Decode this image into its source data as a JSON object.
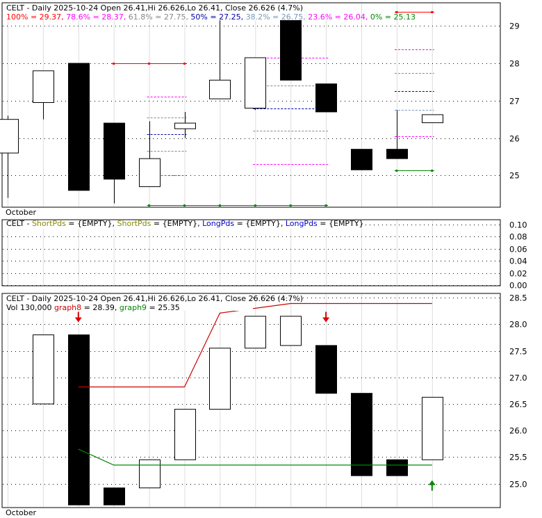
{
  "chart_data": [
    {
      "type": "candlestick",
      "panel": "price-fib",
      "header": {
        "symbol": "CELT",
        "text": " - Daily 2025-10-24 Open 26.41,Hi 26.626,Lo 26.41, Close 26.626 (4.7%)"
      },
      "fib_legend": [
        {
          "text": "100% = 29.37,",
          "color": "#ff0000"
        },
        {
          "text": " 78.6% = 28.37,",
          "color": "#ff00ff"
        },
        {
          "text": " 61.8% = 27.75,",
          "color": "#888888"
        },
        {
          "text": " 50% = 27.25,",
          "color": "#0000aa"
        },
        {
          "text": " 38.2% = 26.75,",
          "color": "#7799bb"
        },
        {
          "text": " 23.6% = 26.04,",
          "color": "#ff00ff"
        },
        {
          "text": " 0% = 25.13",
          "color": "#008800"
        }
      ],
      "ylim": [
        24.15,
        29.62
      ],
      "y_ticks": [
        25,
        26,
        27,
        28,
        29
      ],
      "x_label": "October",
      "candles": [
        {
          "x": 0,
          "o": 25.6,
          "h": 26.6,
          "l": 24.4,
          "c": 26.5
        },
        {
          "x": 1,
          "o": 26.95,
          "h": 27.8,
          "l": 26.5,
          "c": 27.8
        },
        {
          "x": 2,
          "o": 28.0,
          "h": 28.0,
          "l": 24.6,
          "c": 24.6
        },
        {
          "x": 3,
          "o": 26.4,
          "h": 26.4,
          "l": 24.25,
          "c": 24.9
        },
        {
          "x": 4,
          "o": 24.7,
          "h": 26.45,
          "l": 24.7,
          "c": 25.45
        },
        {
          "x": 5,
          "o": 26.25,
          "h": 26.7,
          "l": 26.0,
          "c": 26.4
        },
        {
          "x": 6,
          "o": 27.05,
          "h": 29.3,
          "l": 27.05,
          "c": 27.55
        },
        {
          "x": 7,
          "o": 26.8,
          "h": 28.15,
          "l": 26.75,
          "c": 28.15
        },
        {
          "x": 8,
          "o": 29.25,
          "h": 29.25,
          "l": 27.55,
          "c": 27.55
        },
        {
          "x": 9,
          "o": 27.45,
          "h": 27.45,
          "l": 26.7,
          "c": 26.7
        },
        {
          "x": 10,
          "o": 25.7,
          "h": 25.7,
          "l": 25.15,
          "c": 25.15
        },
        {
          "x": 11,
          "o": 25.7,
          "h": 26.75,
          "l": 25.45,
          "c": 25.45
        },
        {
          "x": 12,
          "o": 26.41,
          "h": 26.626,
          "l": 26.41,
          "c": 26.626
        }
      ],
      "level_lines": [
        {
          "y": 29.37,
          "x0": 11,
          "x1": 12,
          "color": "#ff0000",
          "style": "solid",
          "markers": true
        },
        {
          "y": 28.37,
          "x0": 11,
          "x1": 12,
          "color": "#ff00ff",
          "style": "dashed"
        },
        {
          "y": 27.75,
          "x0": 11,
          "x1": 12,
          "color": "#888888",
          "style": "dashed"
        },
        {
          "y": 27.25,
          "x0": 11,
          "x1": 12,
          "color": "#0000aa",
          "style": "dashed"
        },
        {
          "y": 26.75,
          "x0": 11,
          "x1": 12,
          "color": "#7799bb",
          "style": "dashed"
        },
        {
          "y": 26.04,
          "x0": 11,
          "x1": 12,
          "color": "#ff00ff",
          "style": "dashed"
        },
        {
          "y": 25.13,
          "x0": 11,
          "x1": 12,
          "color": "#008800",
          "style": "solid",
          "markers": true
        },
        {
          "y": 28.0,
          "x0": 3,
          "x1": 5,
          "color": "#ff0000",
          "style": "solid",
          "markers": true
        },
        {
          "y": 27.1,
          "x0": 4,
          "x1": 5,
          "color": "#ff00ff",
          "style": "dashed"
        },
        {
          "y": 26.55,
          "x0": 4,
          "x1": 5,
          "color": "#888888",
          "style": "dashed"
        },
        {
          "y": 26.1,
          "x0": 4,
          "x1": 5,
          "color": "#0000aa",
          "style": "dashed"
        },
        {
          "y": 25.65,
          "x0": 4,
          "x1": 5,
          "color": "#888888",
          "style": "dashed"
        },
        {
          "y": 25.0,
          "x0": 4,
          "x1": 5,
          "color": "#ff00ff",
          "style": "dashed"
        },
        {
          "y": 24.2,
          "x0": 4,
          "x1": 9,
          "color": "#008800",
          "style": "solid",
          "markers": true
        },
        {
          "y": 28.15,
          "x0": 7,
          "x1": 9,
          "color": "#ff00ff",
          "style": "dashed"
        },
        {
          "y": 27.4,
          "x0": 7,
          "x1": 9,
          "color": "#888888",
          "style": "dashed"
        },
        {
          "y": 26.8,
          "x0": 7,
          "x1": 9,
          "color": "#0000aa",
          "style": "dashed"
        },
        {
          "y": 26.2,
          "x0": 7,
          "x1": 9,
          "color": "#888888",
          "style": "dashed"
        },
        {
          "y": 25.3,
          "x0": 7,
          "x1": 9,
          "color": "#ff00ff",
          "style": "dashed"
        }
      ]
    },
    {
      "type": "line",
      "panel": "indicator",
      "header": [
        {
          "text": "CELT",
          "color": "#000000"
        },
        {
          "text": " - ",
          "color": "#000000"
        },
        {
          "text": "ShortPds",
          "color": "#888800"
        },
        {
          "text": " = {EMPTY}, ",
          "color": "#000000"
        },
        {
          "text": "ShortPds",
          "color": "#888800"
        },
        {
          "text": " = {EMPTY}, ",
          "color": "#000000"
        },
        {
          "text": "LongPds",
          "color": "#0000cc"
        },
        {
          "text": " = {EMPTY}, ",
          "color": "#000000"
        },
        {
          "text": "LongPds",
          "color": "#0000cc"
        },
        {
          "text": " = {EMPTY}",
          "color": "#000000"
        }
      ],
      "ylim": [
        0,
        0.1
      ],
      "y_ticks": [
        "0.10",
        "0.08",
        "0.06",
        "0.04",
        "0.02",
        "0.00"
      ],
      "series": []
    },
    {
      "type": "bar",
      "panel": "swing",
      "header": {
        "symbol": "CELT",
        "text": " - Daily 2025-10-24 Open 26.41,Hi 26.626,Lo 26.41, Close 26.626 (4.7%)"
      },
      "legend": [
        {
          "text": "Vol 130,000",
          "color": "#000000"
        },
        {
          "text": " graph8",
          "color": "#cc0000"
        },
        {
          "text": " = 28.39,",
          "color": "#000000"
        },
        {
          "text": " graph9",
          "color": "#008800"
        },
        {
          "text": " = 25.35",
          "color": "#000000"
        }
      ],
      "ylim": [
        24.55,
        28.58
      ],
      "y_ticks": [
        "28.5",
        "28.0",
        "27.5",
        "27.0",
        "26.5",
        "26.0",
        "25.5",
        "25.0"
      ],
      "x_label": "October",
      "boxes": [
        {
          "x": 1,
          "low": 26.5,
          "high": 27.8,
          "filled": false
        },
        {
          "x": 2,
          "low": 24.6,
          "high": 27.8,
          "filled": true
        },
        {
          "x": 3,
          "low": 24.6,
          "high": 24.92,
          "filled": true
        },
        {
          "x": 4,
          "low": 24.92,
          "high": 25.45,
          "filled": false
        },
        {
          "x": 5,
          "low": 25.45,
          "high": 26.4,
          "filled": false
        },
        {
          "x": 6,
          "low": 26.4,
          "high": 27.55,
          "filled": false
        },
        {
          "x": 7,
          "low": 27.55,
          "high": 28.15,
          "filled": false
        },
        {
          "x": 8,
          "low": 27.6,
          "high": 28.15,
          "filled": false
        },
        {
          "x": 9,
          "low": 26.7,
          "high": 27.6,
          "filled": true
        },
        {
          "x": 10,
          "low": 25.15,
          "high": 26.7,
          "filled": true
        },
        {
          "x": 11,
          "low": 25.15,
          "high": 25.45,
          "filled": true
        },
        {
          "x": 12,
          "low": 25.45,
          "high": 26.626,
          "filled": false
        }
      ],
      "series": [
        {
          "color": "#cc0000",
          "points": [
            [
              2,
              26.82
            ],
            [
              5,
              26.82
            ],
            [
              6,
              28.21
            ],
            [
              8,
              28.39
            ],
            [
              12,
              28.39
            ]
          ]
        },
        {
          "color": "#008800",
          "points": [
            [
              2,
              25.65
            ],
            [
              3,
              25.35
            ],
            [
              12,
              25.35
            ]
          ]
        }
      ],
      "arrows": [
        {
          "x": 2,
          "y": 28.05,
          "dir": "down",
          "color": "#dd0000"
        },
        {
          "x": 9,
          "y": 28.05,
          "dir": "down",
          "color": "#dd0000"
        },
        {
          "x": 12,
          "y": 25.05,
          "dir": "up",
          "color": "#008800"
        }
      ]
    }
  ]
}
